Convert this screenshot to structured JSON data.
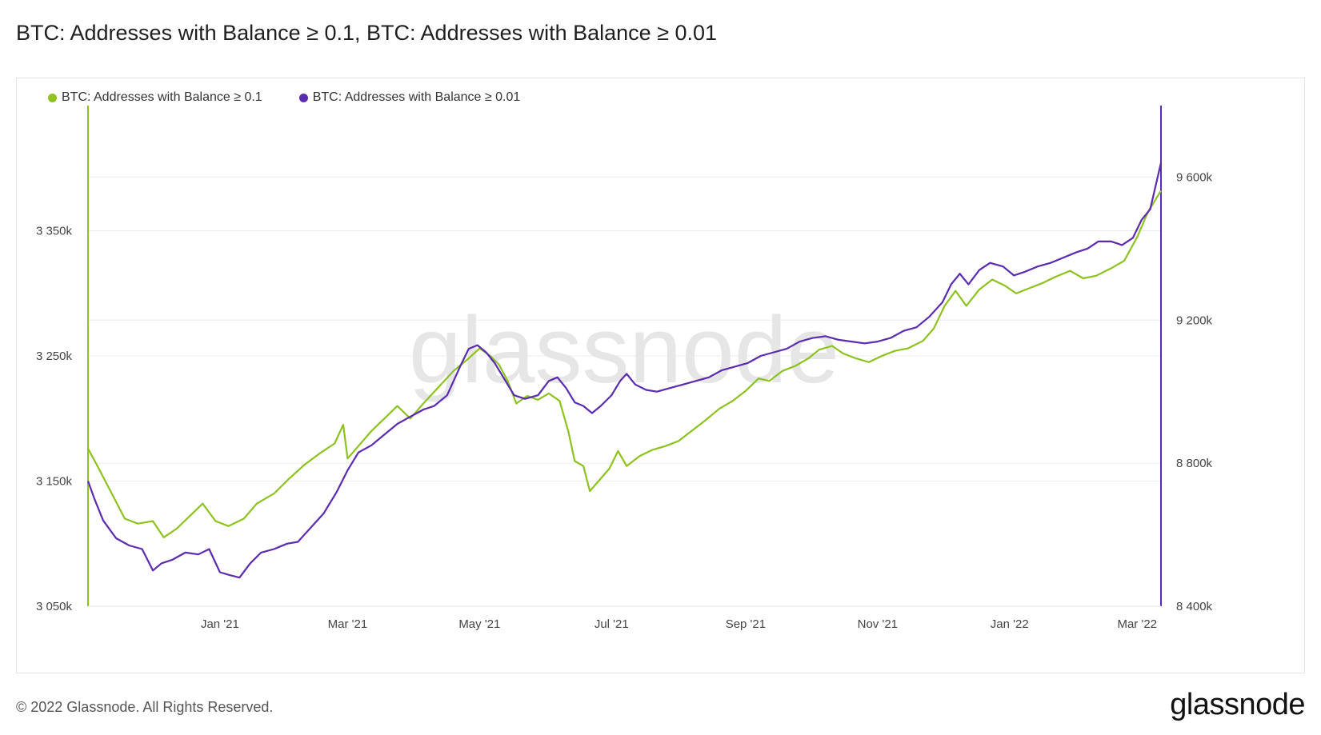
{
  "title": "BTC: Addresses with Balance ≥ 0.1, BTC: Addresses with Balance ≥ 0.01",
  "footer": "© 2022 Glassnode. All Rights Reserved.",
  "logo": "glassnode",
  "watermark": "glassnode",
  "chart_data": {
    "type": "line",
    "legend_position": "top-left",
    "grid": true,
    "x_ticks": [
      "Jan '21",
      "Mar '21",
      "May '21",
      "Jul '21",
      "Sep '21",
      "Nov '21",
      "Jan '22",
      "Mar '22"
    ],
    "x_ticks_values": [
      "2021-01-01",
      "2021-03-01",
      "2021-05-01",
      "2021-07-01",
      "2021-09-01",
      "2021-11-01",
      "2022-01-01",
      "2022-03-01"
    ],
    "xlim": [
      "2020-11-01",
      "2022-03-12"
    ],
    "y_left": {
      "ylim": [
        3050000,
        3450000
      ],
      "ticks": [
        3050000,
        3150000,
        3250000,
        3350000
      ],
      "tick_labels": [
        "3 050k",
        "3 150k",
        "3 250k",
        "3 350k"
      ]
    },
    "y_right": {
      "ylim": [
        8400000,
        9800000
      ],
      "ticks": [
        8400000,
        8800000,
        9200000,
        9600000
      ],
      "tick_labels": [
        "8 400k",
        "8 800k",
        "9 200k",
        "9 600k"
      ]
    },
    "series": [
      {
        "name": "BTC: Addresses with Balance ≥ 0.1",
        "color": "#8dc21f",
        "axis": "left",
        "points": [
          [
            "2020-11-01",
            3176000
          ],
          [
            "2020-11-06",
            3160000
          ],
          [
            "2020-11-12",
            3140000
          ],
          [
            "2020-11-18",
            3120000
          ],
          [
            "2020-11-24",
            3116000
          ],
          [
            "2020-12-01",
            3118000
          ],
          [
            "2020-12-06",
            3105000
          ],
          [
            "2020-12-12",
            3112000
          ],
          [
            "2020-12-18",
            3122000
          ],
          [
            "2020-12-24",
            3132000
          ],
          [
            "2020-12-30",
            3118000
          ],
          [
            "2021-01-05",
            3114000
          ],
          [
            "2021-01-12",
            3120000
          ],
          [
            "2021-01-18",
            3132000
          ],
          [
            "2021-01-26",
            3140000
          ],
          [
            "2021-02-02",
            3152000
          ],
          [
            "2021-02-09",
            3163000
          ],
          [
            "2021-02-16",
            3172000
          ],
          [
            "2021-02-23",
            3180000
          ],
          [
            "2021-02-27",
            3195000
          ],
          [
            "2021-03-01",
            3168000
          ],
          [
            "2021-03-06",
            3178000
          ],
          [
            "2021-03-12",
            3190000
          ],
          [
            "2021-03-18",
            3200000
          ],
          [
            "2021-03-24",
            3210000
          ],
          [
            "2021-03-30",
            3200000
          ],
          [
            "2021-04-05",
            3212000
          ],
          [
            "2021-04-12",
            3225000
          ],
          [
            "2021-04-19",
            3238000
          ],
          [
            "2021-04-26",
            3248000
          ],
          [
            "2021-05-01",
            3256000
          ],
          [
            "2021-05-06",
            3250000
          ],
          [
            "2021-05-10",
            3243000
          ],
          [
            "2021-05-14",
            3230000
          ],
          [
            "2021-05-18",
            3212000
          ],
          [
            "2021-05-23",
            3218000
          ],
          [
            "2021-05-28",
            3215000
          ],
          [
            "2021-06-02",
            3220000
          ],
          [
            "2021-06-07",
            3214000
          ],
          [
            "2021-06-11",
            3190000
          ],
          [
            "2021-06-14",
            3166000
          ],
          [
            "2021-06-18",
            3162000
          ],
          [
            "2021-06-21",
            3142000
          ],
          [
            "2021-06-25",
            3150000
          ],
          [
            "2021-06-30",
            3160000
          ],
          [
            "2021-07-04",
            3174000
          ],
          [
            "2021-07-08",
            3162000
          ],
          [
            "2021-07-14",
            3170000
          ],
          [
            "2021-07-20",
            3175000
          ],
          [
            "2021-07-26",
            3178000
          ],
          [
            "2021-08-01",
            3182000
          ],
          [
            "2021-08-07",
            3190000
          ],
          [
            "2021-08-13",
            3198000
          ],
          [
            "2021-08-20",
            3208000
          ],
          [
            "2021-08-26",
            3214000
          ],
          [
            "2021-09-01",
            3222000
          ],
          [
            "2021-09-07",
            3232000
          ],
          [
            "2021-09-12",
            3230000
          ],
          [
            "2021-09-18",
            3238000
          ],
          [
            "2021-09-24",
            3242000
          ],
          [
            "2021-09-30",
            3248000
          ],
          [
            "2021-10-05",
            3255000
          ],
          [
            "2021-10-11",
            3258000
          ],
          [
            "2021-10-16",
            3252000
          ],
          [
            "2021-10-22",
            3248000
          ],
          [
            "2021-10-28",
            3245000
          ],
          [
            "2021-11-03",
            3250000
          ],
          [
            "2021-11-09",
            3254000
          ],
          [
            "2021-11-15",
            3256000
          ],
          [
            "2021-11-22",
            3262000
          ],
          [
            "2021-11-27",
            3272000
          ],
          [
            "2021-12-02",
            3290000
          ],
          [
            "2021-12-07",
            3302000
          ],
          [
            "2021-12-12",
            3290000
          ],
          [
            "2021-12-18",
            3303000
          ],
          [
            "2021-12-24",
            3311000
          ],
          [
            "2021-12-30",
            3306000
          ],
          [
            "2022-01-04",
            3300000
          ],
          [
            "2022-01-10",
            3304000
          ],
          [
            "2022-01-16",
            3308000
          ],
          [
            "2022-01-22",
            3313000
          ],
          [
            "2022-01-29",
            3318000
          ],
          [
            "2022-02-04",
            3312000
          ],
          [
            "2022-02-10",
            3314000
          ],
          [
            "2022-02-17",
            3320000
          ],
          [
            "2022-02-23",
            3326000
          ],
          [
            "2022-03-01",
            3345000
          ],
          [
            "2022-03-06",
            3365000
          ],
          [
            "2022-03-12",
            3382000
          ]
        ]
      },
      {
        "name": "BTC: Addresses with Balance ≥ 0.01",
        "color": "#5b2bb0",
        "axis": "right",
        "points": [
          [
            "2020-11-01",
            8750000
          ],
          [
            "2020-11-04",
            8700000
          ],
          [
            "2020-11-08",
            8640000
          ],
          [
            "2020-11-14",
            8590000
          ],
          [
            "2020-11-20",
            8570000
          ],
          [
            "2020-11-26",
            8560000
          ],
          [
            "2020-12-01",
            8500000
          ],
          [
            "2020-12-05",
            8520000
          ],
          [
            "2020-12-10",
            8530000
          ],
          [
            "2020-12-16",
            8550000
          ],
          [
            "2020-12-22",
            8545000
          ],
          [
            "2020-12-27",
            8560000
          ],
          [
            "2021-01-01",
            8495000
          ],
          [
            "2021-01-05",
            8488000
          ],
          [
            "2021-01-10",
            8480000
          ],
          [
            "2021-01-15",
            8520000
          ],
          [
            "2021-01-20",
            8550000
          ],
          [
            "2021-01-26",
            8560000
          ],
          [
            "2021-02-01",
            8575000
          ],
          [
            "2021-02-06",
            8580000
          ],
          [
            "2021-02-12",
            8620000
          ],
          [
            "2021-02-18",
            8660000
          ],
          [
            "2021-02-24",
            8720000
          ],
          [
            "2021-03-01",
            8780000
          ],
          [
            "2021-03-06",
            8830000
          ],
          [
            "2021-03-12",
            8850000
          ],
          [
            "2021-03-18",
            8880000
          ],
          [
            "2021-03-24",
            8910000
          ],
          [
            "2021-03-30",
            8930000
          ],
          [
            "2021-04-05",
            8950000
          ],
          [
            "2021-04-10",
            8960000
          ],
          [
            "2021-04-16",
            8990000
          ],
          [
            "2021-04-22",
            9070000
          ],
          [
            "2021-04-26",
            9120000
          ],
          [
            "2021-04-30",
            9130000
          ],
          [
            "2021-05-04",
            9110000
          ],
          [
            "2021-05-08",
            9080000
          ],
          [
            "2021-05-12",
            9040000
          ],
          [
            "2021-05-17",
            8990000
          ],
          [
            "2021-05-22",
            8980000
          ],
          [
            "2021-05-28",
            8990000
          ],
          [
            "2021-06-02",
            9030000
          ],
          [
            "2021-06-06",
            9040000
          ],
          [
            "2021-06-10",
            9010000
          ],
          [
            "2021-06-14",
            8970000
          ],
          [
            "2021-06-18",
            8960000
          ],
          [
            "2021-06-22",
            8940000
          ],
          [
            "2021-06-26",
            8960000
          ],
          [
            "2021-07-01",
            8990000
          ],
          [
            "2021-07-05",
            9030000
          ],
          [
            "2021-07-08",
            9050000
          ],
          [
            "2021-07-12",
            9020000
          ],
          [
            "2021-07-17",
            9005000
          ],
          [
            "2021-07-22",
            9000000
          ],
          [
            "2021-07-28",
            9010000
          ],
          [
            "2021-08-03",
            9020000
          ],
          [
            "2021-08-09",
            9030000
          ],
          [
            "2021-08-15",
            9040000
          ],
          [
            "2021-08-21",
            9060000
          ],
          [
            "2021-08-27",
            9070000
          ],
          [
            "2021-09-02",
            9080000
          ],
          [
            "2021-09-08",
            9100000
          ],
          [
            "2021-09-14",
            9110000
          ],
          [
            "2021-09-20",
            9120000
          ],
          [
            "2021-09-26",
            9140000
          ],
          [
            "2021-10-02",
            9150000
          ],
          [
            "2021-10-08",
            9155000
          ],
          [
            "2021-10-14",
            9145000
          ],
          [
            "2021-10-20",
            9140000
          ],
          [
            "2021-10-26",
            9135000
          ],
          [
            "2021-11-01",
            9140000
          ],
          [
            "2021-11-07",
            9150000
          ],
          [
            "2021-11-13",
            9170000
          ],
          [
            "2021-11-19",
            9180000
          ],
          [
            "2021-11-25",
            9210000
          ],
          [
            "2021-12-01",
            9250000
          ],
          [
            "2021-12-05",
            9300000
          ],
          [
            "2021-12-09",
            9330000
          ],
          [
            "2021-12-13",
            9300000
          ],
          [
            "2021-12-18",
            9340000
          ],
          [
            "2021-12-23",
            9360000
          ],
          [
            "2021-12-29",
            9350000
          ],
          [
            "2022-01-03",
            9325000
          ],
          [
            "2022-01-08",
            9335000
          ],
          [
            "2022-01-14",
            9350000
          ],
          [
            "2022-01-20",
            9360000
          ],
          [
            "2022-01-26",
            9375000
          ],
          [
            "2022-02-01",
            9390000
          ],
          [
            "2022-02-06",
            9400000
          ],
          [
            "2022-02-11",
            9420000
          ],
          [
            "2022-02-17",
            9420000
          ],
          [
            "2022-02-22",
            9410000
          ],
          [
            "2022-02-27",
            9430000
          ],
          [
            "2022-03-03",
            9480000
          ],
          [
            "2022-03-07",
            9510000
          ],
          [
            "2022-03-12",
            9640000
          ]
        ]
      }
    ]
  }
}
